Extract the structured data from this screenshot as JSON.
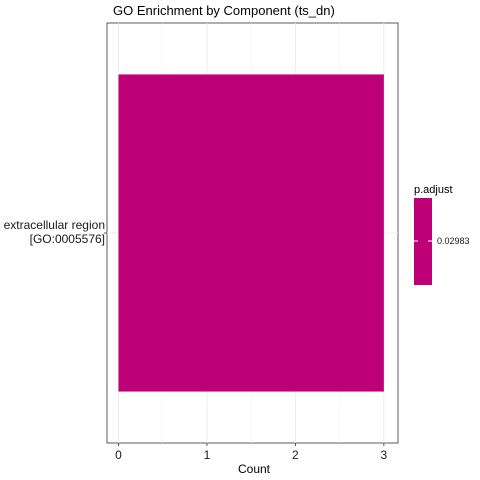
{
  "chart_data": {
    "type": "bar",
    "orientation": "horizontal",
    "title": "GO Enrichment by Component (ts_dn)",
    "xlabel": "Count",
    "ylabel": "",
    "xlim": [
      -0.13,
      3.16
    ],
    "xticks": [
      "0",
      "1",
      "2",
      "3"
    ],
    "categories": [
      {
        "line1": "extracellular region",
        "line2": "[GO:0005576]"
      }
    ],
    "values": [
      3
    ],
    "bar_color": "#be0077",
    "grid": true,
    "legend": {
      "title": "p.adjust",
      "placement": "right",
      "color": "#be0077",
      "labels": [
        "0.02983"
      ]
    }
  }
}
